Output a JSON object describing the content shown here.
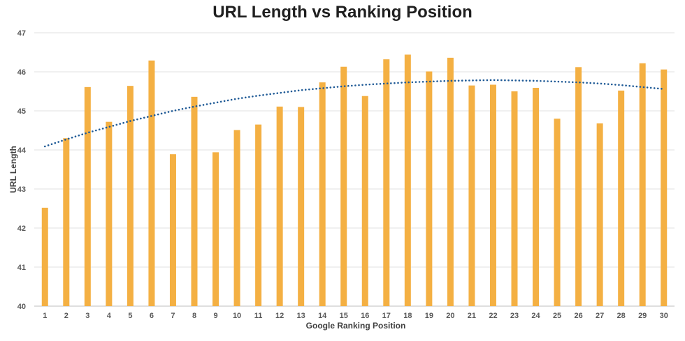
{
  "chart_data": {
    "type": "bar",
    "title": "URL Length vs Ranking Position",
    "xlabel": "Google Ranking Position",
    "ylabel": "URL Length",
    "ylim": [
      40,
      47
    ],
    "yticks": [
      "40",
      "41",
      "42",
      "43",
      "44",
      "45",
      "46",
      "47"
    ],
    "grid": true,
    "categories": [
      "1",
      "2",
      "3",
      "4",
      "5",
      "6",
      "7",
      "8",
      "9",
      "10",
      "11",
      "12",
      "13",
      "14",
      "15",
      "16",
      "17",
      "18",
      "19",
      "20",
      "21",
      "22",
      "23",
      "24",
      "25",
      "26",
      "27",
      "28",
      "29",
      "30"
    ],
    "series": [
      {
        "values": [
          42.52,
          44.3,
          45.61,
          44.72,
          45.64,
          46.29,
          43.89,
          45.36,
          43.94,
          44.51,
          44.65,
          45.11,
          45.1,
          45.73,
          46.13,
          45.38,
          46.32,
          46.44,
          46.01,
          46.36,
          45.65,
          45.67,
          45.5,
          45.59,
          44.8,
          46.12,
          44.68,
          45.52,
          46.22,
          46.06
        ]
      }
    ],
    "trendline": {
      "type": "polynomial",
      "style": "dotted",
      "values": [
        44.09,
        44.27,
        44.44,
        44.59,
        44.74,
        44.87,
        45.0,
        45.11,
        45.21,
        45.31,
        45.39,
        45.46,
        45.53,
        45.58,
        45.63,
        45.67,
        45.7,
        45.73,
        45.75,
        45.77,
        45.78,
        45.79,
        45.78,
        45.77,
        45.75,
        45.73,
        45.7,
        45.66,
        45.61,
        45.56
      ]
    },
    "colors": {
      "bar": "#F4B043",
      "trendline": "#1F5A96",
      "grid": "#E2E2E2"
    }
  }
}
